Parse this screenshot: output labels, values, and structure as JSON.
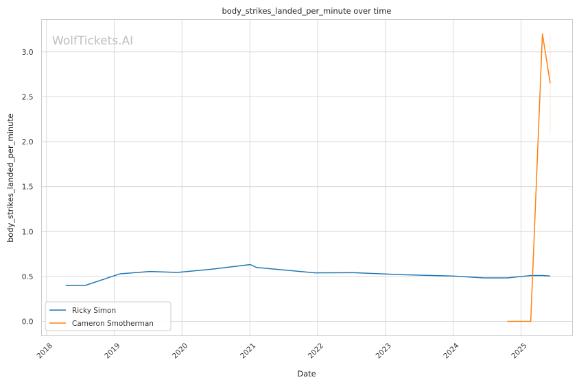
{
  "chart_data": {
    "type": "line",
    "title": "body_strikes_landed_per_minute over time",
    "xlabel": "Date",
    "ylabel": "body_strikes_landed_per_minute",
    "watermark": "WolfTickets.AI",
    "xlim": [
      "2017-12-05",
      "2025-10-05"
    ],
    "ylim": [
      -0.16,
      3.36
    ],
    "x_ticks": [
      "2018",
      "2019",
      "2020",
      "2021",
      "2022",
      "2023",
      "2024",
      "2025"
    ],
    "y_ticks": [
      "0.0",
      "0.5",
      "1.0",
      "1.5",
      "2.0",
      "2.5",
      "3.0"
    ],
    "grid": true,
    "legend_position": "lower-left",
    "series": [
      {
        "name": "Ricky Simon",
        "color": "#1f77b4",
        "points": [
          {
            "x": "2018-04-14",
            "y": 0.4
          },
          {
            "x": "2018-07-28",
            "y": 0.4
          },
          {
            "x": "2019-02-02",
            "y": 0.53
          },
          {
            "x": "2019-07-13",
            "y": 0.555
          },
          {
            "x": "2019-12-07",
            "y": 0.545
          },
          {
            "x": "2020-06-06",
            "y": 0.58
          },
          {
            "x": "2021-01-03",
            "y": 0.632
          },
          {
            "x": "2021-02-06",
            "y": 0.6
          },
          {
            "x": "2021-12-18",
            "y": 0.54
          },
          {
            "x": "2022-07-16",
            "y": 0.542
          },
          {
            "x": "2023-03-25",
            "y": 0.52
          },
          {
            "x": "2023-12-30",
            "y": 0.505
          },
          {
            "x": "2024-06-15",
            "y": 0.484
          },
          {
            "x": "2024-10-19",
            "y": 0.484
          },
          {
            "x": "2025-02-22",
            "y": 0.51
          },
          {
            "x": "2025-04-26",
            "y": 0.51
          },
          {
            "x": "2025-06-07",
            "y": 0.505
          }
        ]
      },
      {
        "name": "Cameron Smotherman",
        "color": "#ff7f0e",
        "points": [
          {
            "x": "2024-10-19",
            "y": 0.0
          },
          {
            "x": "2025-02-22",
            "y": 0.0
          },
          {
            "x": "2025-04-26",
            "y": 3.2
          },
          {
            "x": "2025-06-07",
            "y": 2.65
          }
        ],
        "band": {
          "x": "2025-06-07",
          "low": 2.1,
          "high": 3.2
        }
      }
    ]
  }
}
